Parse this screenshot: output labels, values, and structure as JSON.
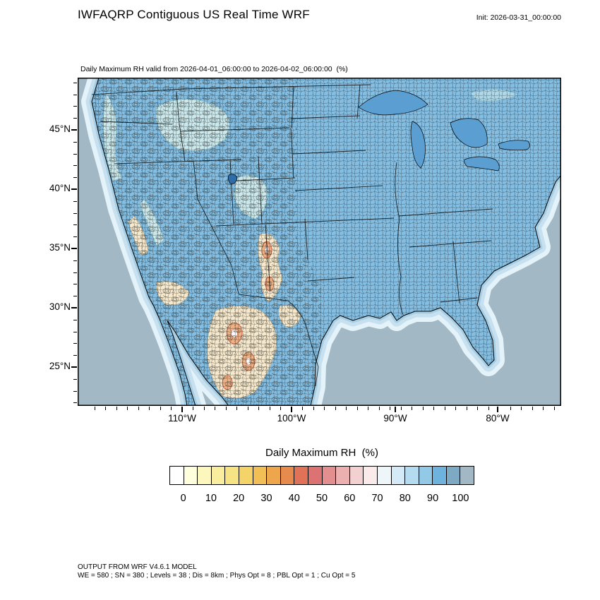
{
  "header": {
    "title": "IWFAQRP Contiguous US Real Time WRF",
    "init_label": "Init: 2026-03-31_00:00:00"
  },
  "plot": {
    "subtitle": "Daily Maximum RH valid from 2026-04-01_06:00:00 to 2026-04-02_06:00:00  (%)"
  },
  "axes": {
    "lat_labels": [
      "45°N",
      "40°N",
      "35°N",
      "30°N",
      "25°N"
    ],
    "lon_labels": [
      "110°W",
      "100°W",
      "90°W",
      "80°W"
    ]
  },
  "colorbar": {
    "title": "Daily Maximum RH  (%)",
    "tick_labels": [
      "0",
      "10",
      "20",
      "30",
      "40",
      "50",
      "60",
      "70",
      "80",
      "90",
      "100"
    ],
    "colors": [
      "#ffffff",
      "#ffffdd",
      "#fcf7bd",
      "#f9ee9e",
      "#f6e383",
      "#f4d469",
      "#f1bf56",
      "#eda64b",
      "#e78a4e",
      "#e07257",
      "#dc7272",
      "#e38f8f",
      "#ecb0b0",
      "#f4d1d1",
      "#faeaea",
      "#eef6fa",
      "#d4eaf6",
      "#b4dbf0",
      "#92c9e7",
      "#6db3dd",
      "#7ea9c2",
      "#a2b9c5"
    ]
  },
  "map_colors": {
    "ocean": "#a2b9c5",
    "land": "#84bfe3",
    "lakes": "#5a9ed2"
  },
  "footer": {
    "line1": "OUTPUT FROM WRF V4.6.1 MODEL",
    "line2": "WE = 580 ; SN = 380 ; Levels = 38 ; Dis = 8km ; Phys Opt = 8 ; PBL Opt = 1 ; Cu Opt = 5"
  },
  "chart_data": {
    "type": "heatmap",
    "subtype": "filled-contour-weather-map",
    "title": "Daily Maximum RH valid from 2026-04-01_06:00:00 to 2026-04-02_06:00:00 (%)",
    "variable": "Daily Maximum RH",
    "units": "%",
    "init_time": "2026-03-31_00:00:00",
    "valid_start": "2026-04-01_06:00:00",
    "valid_end": "2026-04-02_06:00:00",
    "x_axis": {
      "label": "longitude",
      "tick_labels": [
        "110°W",
        "100°W",
        "90°W",
        "80°W"
      ]
    },
    "y_axis": {
      "label": "latitude",
      "tick_labels": [
        "45°N",
        "40°N",
        "35°N",
        "30°N",
        "25°N"
      ]
    },
    "color_scale": {
      "tick_values": [
        0,
        10,
        20,
        30,
        40,
        50,
        60,
        70,
        80,
        90,
        100
      ],
      "contour_interval": 5,
      "cell_count": 22,
      "colors": [
        "#ffffff",
        "#ffffdd",
        "#fcf7bd",
        "#f9ee9e",
        "#f6e383",
        "#f4d469",
        "#f1bf56",
        "#eda64b",
        "#e78a4e",
        "#e07257",
        "#dc7272",
        "#e38f8f",
        "#ecb0b0",
        "#f4d1d1",
        "#faeaea",
        "#eef6fa",
        "#d4eaf6",
        "#b4dbf0",
        "#92c9e7",
        "#6db3dd",
        "#7ea9c2",
        "#a2b9c5"
      ]
    },
    "pattern_notes": [
      "High RH (80-100%) blue shading covers the eastern US, Great Lakes region, Gulf of Mexico, Atlantic and Pacific waters",
      "Low RH (0-40%) white/tan/orange areas over southern California, the Colorado Plateau strip and northern Mexico highlands",
      "Pale cyan mid-to-high values over the Cascades, northern Rockies and Sierra Nevada",
      "Dense county boundary lines overlaid across the CONUS domain"
    ],
    "model_config": "WRF V4.6.1 ; WE = 580 ; SN = 380 ; Levels = 38 ; Dis = 8km ; Phys Opt = 8 ; PBL Opt = 1 ; Cu Opt = 5"
  }
}
